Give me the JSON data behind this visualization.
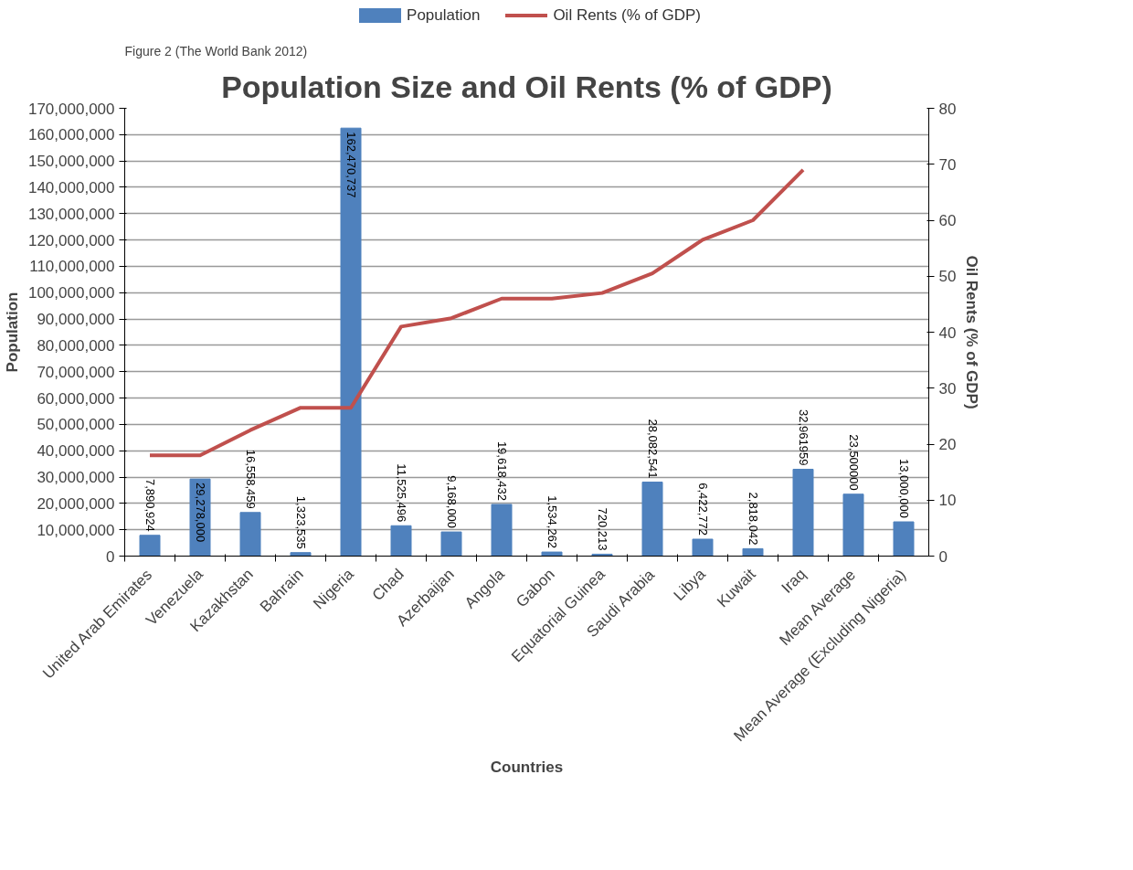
{
  "chart_data": {
    "type": "bar",
    "title": "Population Size and Oil Rents (% of GDP)",
    "xlabel": "Countries",
    "ylabel": "Population",
    "y2label": "Oil Rents (% of GDP)",
    "annotations": [
      "Figure 2  (The World Bank 2012)"
    ],
    "categories": [
      "United Arab Emirates",
      "Venezuela",
      "Kazakhstan",
      "Bahrain",
      "Nigeria",
      "Chad",
      "Azerbaijan",
      "Angola",
      "Gabon",
      "Equatorial Guinea",
      "Saudi Arabia",
      "Libya",
      "Kuwait",
      "Iraq",
      "Mean Average",
      "Mean Average (Excluding Nigeria)"
    ],
    "series": [
      {
        "name": "Population",
        "color": "#4f81bd",
        "values": [
          7890924,
          29278000,
          16558459,
          1323535,
          162470737,
          11525496,
          9168000,
          19618432,
          1534262,
          720213,
          28082541,
          6422772,
          2818042,
          32961959,
          23500000,
          13000000
        ],
        "value_labels": [
          "7,890,924",
          "29,278,000",
          "16,558,459",
          "1,323,535",
          "162,470,737",
          "11,525,496",
          "9,168,000",
          "19,618,432",
          "1,534,262",
          "720,213",
          "28,082,541",
          "6,422,772",
          "2,818,042",
          "32,961959",
          "23,500000",
          "13,000,000"
        ]
      },
      {
        "type": "line",
        "name": "Oil Rents (% of GDP)",
        "color": "#c0504d",
        "axis": "y2",
        "values": [
          18,
          18,
          22.5,
          26.5,
          26.5,
          41,
          42.5,
          46,
          46,
          47,
          50.5,
          56.5,
          60,
          69,
          null,
          null
        ]
      }
    ],
    "ylim": [
      0,
      170000000
    ],
    "yticks": [
      {
        "value": 0,
        "label": "0"
      },
      {
        "value": 10000000,
        "label": "10,000,000"
      },
      {
        "value": 20000000,
        "label": "20,000,000"
      },
      {
        "value": 30000000,
        "label": "30,000,000"
      },
      {
        "value": 40000000,
        "label": "40,000,000"
      },
      {
        "value": 50000000,
        "label": "50,000,000"
      },
      {
        "value": 60000000,
        "label": "60,000,000"
      },
      {
        "value": 70000000,
        "label": "70,000,000"
      },
      {
        "value": 80000000,
        "label": "80,000,000"
      },
      {
        "value": 90000000,
        "label": "90,000,000"
      },
      {
        "value": 100000000,
        "label": "100,000,000"
      },
      {
        "value": 110000000,
        "label": "110,000,000"
      },
      {
        "value": 120000000,
        "label": "120,000,000"
      },
      {
        "value": 130000000,
        "label": "130,000,000"
      },
      {
        "value": 140000000,
        "label": "140,000,000"
      },
      {
        "value": 150000000,
        "label": "150,000,000"
      },
      {
        "value": 160000000,
        "label": "160,000,000"
      },
      {
        "value": 170000000,
        "label": "170,000,000"
      }
    ],
    "y2lim": [
      0,
      80
    ],
    "y2ticks": [
      0,
      10,
      20,
      30,
      40,
      50,
      60,
      70,
      80
    ],
    "grid": "y",
    "legend": "top",
    "marker": "none",
    "line_style": "solid"
  }
}
